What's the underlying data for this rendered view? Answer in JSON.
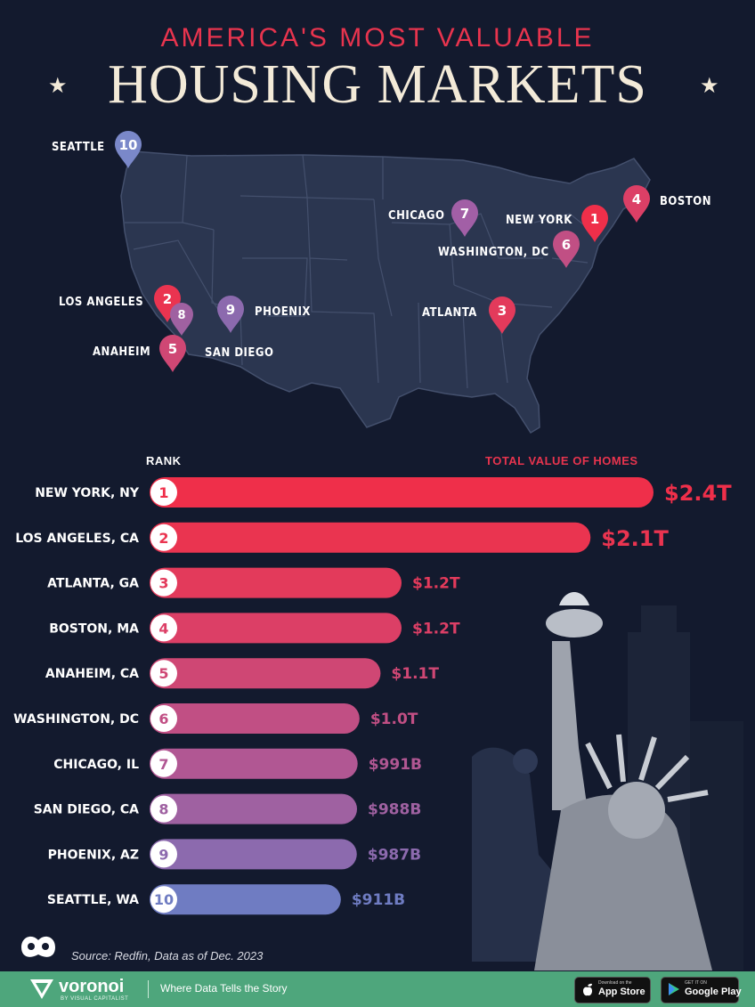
{
  "header": {
    "subtitle": "AMERICA'S MOST VALUABLE",
    "title": "HOUSING MARKETS"
  },
  "map_labels": {
    "seattle": "SEATTLE",
    "chicago": "CHICAGO",
    "new_york": "NEW YORK",
    "boston": "BOSTON",
    "washington": "WASHINGTON, DC",
    "los_angeles": "LOS ANGELES",
    "phoenix": "PHOENIX",
    "atlanta": "ATLANTA",
    "anaheim": "ANAHEIM",
    "san_diego": "SAN DIEGO"
  },
  "chart_data": {
    "type": "bar",
    "xlabel": "TOTAL VALUE OF HOMES",
    "ylabel": "RANK",
    "value_unit": "USD billions",
    "categories": [
      "NEW YORK, NY",
      "LOS ANGELES, CA",
      "ATLANTA, GA",
      "BOSTON, MA",
      "ANAHEIM, CA",
      "WASHINGTON, DC",
      "CHICAGO, IL",
      "SAN DIEGO, CA",
      "PHOENIX, AZ",
      "SEATTLE, WA"
    ],
    "ranks": [
      "1",
      "2",
      "3",
      "4",
      "5",
      "6",
      "7",
      "8",
      "9",
      "10"
    ],
    "values": [
      2400,
      2100,
      1200,
      1200,
      1100,
      1000,
      991,
      988,
      987,
      911
    ],
    "value_labels": [
      "$2.4T",
      "$2.1T",
      "$1.2T",
      "$1.2T",
      "$1.1T",
      "$1.0T",
      "$991B",
      "$988B",
      "$987B",
      "$911B"
    ],
    "colors": [
      "#ef2f4a",
      "#ea3450",
      "#e33a5b",
      "#dc3f66",
      "#cf4774",
      "#c14f84",
      "#b15793",
      "#9f61a1",
      "#8c6aae",
      "#6f7cc2"
    ]
  },
  "footer": {
    "source": "Source: Redfin, Data as of Dec. 2023",
    "brand": "voronoi",
    "brand_sub": "BY VISUAL CAPITALIST",
    "tagline": "Where Data Tells the Story",
    "app_store_small": "Download on the",
    "app_store": "App Store",
    "google_play_small": "GET IT ON",
    "google_play": "Google Play"
  }
}
